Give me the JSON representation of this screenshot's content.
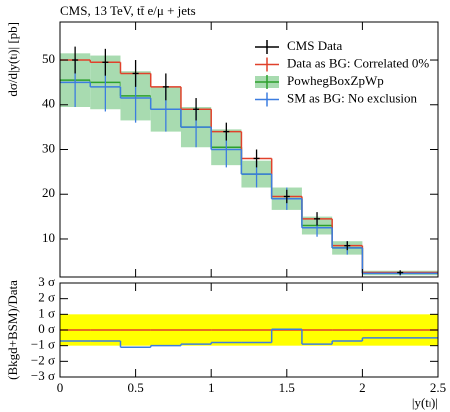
{
  "chart_data": [
    {
      "type": "histogram",
      "title": "CMS, 13 TeV, tt̄ e/μ + jets",
      "y_label": "dσ/d|y(tₗ)| [pb]",
      "bins": [
        0,
        0.2,
        0.4,
        0.6,
        0.8,
        1.0,
        1.2,
        1.4,
        1.6,
        1.8,
        2.0,
        2.5
      ],
      "xlim": [
        0,
        2.5
      ],
      "xticks": [
        0,
        0.5,
        1,
        1.5,
        2,
        2.5
      ],
      "ylim": [
        1.5,
        58.5
      ],
      "yticks": [
        10,
        20,
        30,
        40,
        50
      ],
      "legend": "upper right",
      "series": [
        {
          "name": "CMS Data",
          "color": "#000000",
          "style": "points",
          "values": [
            50.0,
            49.5,
            47.0,
            44.0,
            39.0,
            34.0,
            28.0,
            19.5,
            14.5,
            8.5,
            2.5
          ],
          "errors": [
            3,
            3,
            3,
            3,
            2.5,
            2,
            2,
            1.5,
            1.5,
            1,
            0.5
          ]
        },
        {
          "name": "Data as BG: Correlated 0%",
          "color": "#e0412b",
          "style": "step",
          "values": [
            50.0,
            49.5,
            47.0,
            44.0,
            39.0,
            34.0,
            28.0,
            19.5,
            14.5,
            8.5,
            2.5
          ]
        },
        {
          "name": "PowhegBoxZpWp",
          "color": "#2ca02c",
          "band_color": "#a8dbb0",
          "style": "band",
          "values": [
            45.5,
            45,
            42,
            39,
            35,
            30.5,
            24.5,
            19,
            13,
            8,
            2.4
          ],
          "errors": [
            6,
            6,
            5.5,
            5,
            4.5,
            4,
            3,
            2.5,
            2,
            1.5,
            0.5
          ]
        },
        {
          "name": "SM as BG: No exclusion",
          "color": "#3c7de0",
          "style": "step",
          "values": [
            45,
            44,
            41.5,
            39,
            35,
            30,
            24.5,
            19,
            12.5,
            8,
            2.3
          ],
          "errors": [
            5.5,
            5.5,
            5.5,
            5,
            4.5,
            4,
            3,
            2.5,
            2,
            1.5,
            0.5
          ]
        }
      ]
    },
    {
      "type": "histogram",
      "y_label": "(Bkgd+BSM)/Data",
      "x_label": "|y(tₗ)|",
      "bins": [
        0,
        0.2,
        0.4,
        0.6,
        0.8,
        1.0,
        1.2,
        1.4,
        1.6,
        1.8,
        2.0,
        2.5
      ],
      "xlim": [
        0,
        2.5
      ],
      "xticks": [
        0,
        0.5,
        1,
        1.5,
        2,
        2.5
      ],
      "ylim": [
        -3,
        3
      ],
      "yticks": [
        {
          "value": 3,
          "label": "3 σ"
        },
        {
          "value": 2,
          "label": "2 σ"
        },
        {
          "value": 1,
          "label": "1 σ"
        },
        {
          "value": 0,
          "label": "0 σ"
        },
        {
          "value": -1,
          "label": "−1 σ"
        },
        {
          "value": -2,
          "label": "−2 σ"
        },
        {
          "value": -3,
          "label": "−3 σ"
        }
      ],
      "band": [
        -1,
        1
      ],
      "band_color": "#ffff00",
      "series": [
        {
          "color": "#e0412b",
          "style": "step",
          "values": [
            0,
            0,
            0,
            0,
            0,
            0,
            0,
            0,
            0,
            0,
            0
          ]
        },
        {
          "color": "#3c7de0",
          "style": "step",
          "values": [
            -0.7,
            -0.7,
            -1.1,
            -1.0,
            -0.9,
            -0.8,
            -0.8,
            0.05,
            -0.9,
            -0.7,
            -0.5
          ]
        }
      ]
    }
  ]
}
